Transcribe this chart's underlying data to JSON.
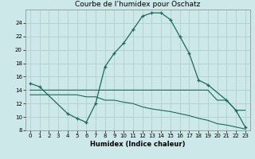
{
  "title": "Courbe de l’humidex pour Oschatz",
  "xlabel": "Humidex (Indice chaleur)",
  "bg_color": "#cce8e8",
  "grid_color": "#aacccc",
  "line_color": "#1a6b5e",
  "main_x": [
    0,
    1,
    4,
    5,
    6,
    7,
    8,
    9,
    10,
    11,
    12,
    13,
    14,
    15,
    16,
    17,
    18,
    19,
    21,
    22,
    23
  ],
  "main_y": [
    15.0,
    14.5,
    10.5,
    9.8,
    9.2,
    12.0,
    17.5,
    19.5,
    21.0,
    23.0,
    25.0,
    25.5,
    25.5,
    24.5,
    22.0,
    19.5,
    15.5,
    14.8,
    12.5,
    11.0,
    8.5
  ],
  "top_x": [
    0,
    1,
    2,
    3,
    4,
    5,
    6,
    7,
    8,
    9,
    10,
    11,
    12,
    13,
    14,
    15,
    16,
    17,
    18,
    19,
    20,
    21,
    22,
    23
  ],
  "top_y": [
    14.0,
    14.0,
    14.0,
    14.0,
    14.0,
    14.0,
    14.0,
    14.0,
    14.0,
    14.0,
    14.0,
    14.0,
    14.0,
    14.0,
    14.0,
    14.0,
    14.0,
    14.0,
    14.0,
    14.0,
    12.5,
    12.5,
    11.0,
    11.0
  ],
  "bot_x": [
    0,
    1,
    2,
    3,
    4,
    5,
    6,
    7,
    8,
    9,
    10,
    11,
    12,
    13,
    14,
    15,
    16,
    17,
    18,
    19,
    20,
    21,
    22,
    23
  ],
  "bot_y": [
    13.3,
    13.3,
    13.3,
    13.3,
    13.3,
    13.3,
    13.0,
    13.0,
    12.5,
    12.5,
    12.2,
    12.0,
    11.5,
    11.2,
    11.0,
    10.8,
    10.5,
    10.2,
    9.8,
    9.5,
    9.0,
    8.8,
    8.5,
    8.2
  ],
  "ylim": [
    8,
    26
  ],
  "xlim": [
    -0.5,
    23.5
  ],
  "yticks": [
    8,
    10,
    12,
    14,
    16,
    18,
    20,
    22,
    24
  ],
  "xticks": [
    0,
    1,
    2,
    3,
    4,
    5,
    6,
    7,
    8,
    9,
    10,
    11,
    12,
    13,
    14,
    15,
    16,
    17,
    18,
    19,
    20,
    21,
    22,
    23
  ]
}
